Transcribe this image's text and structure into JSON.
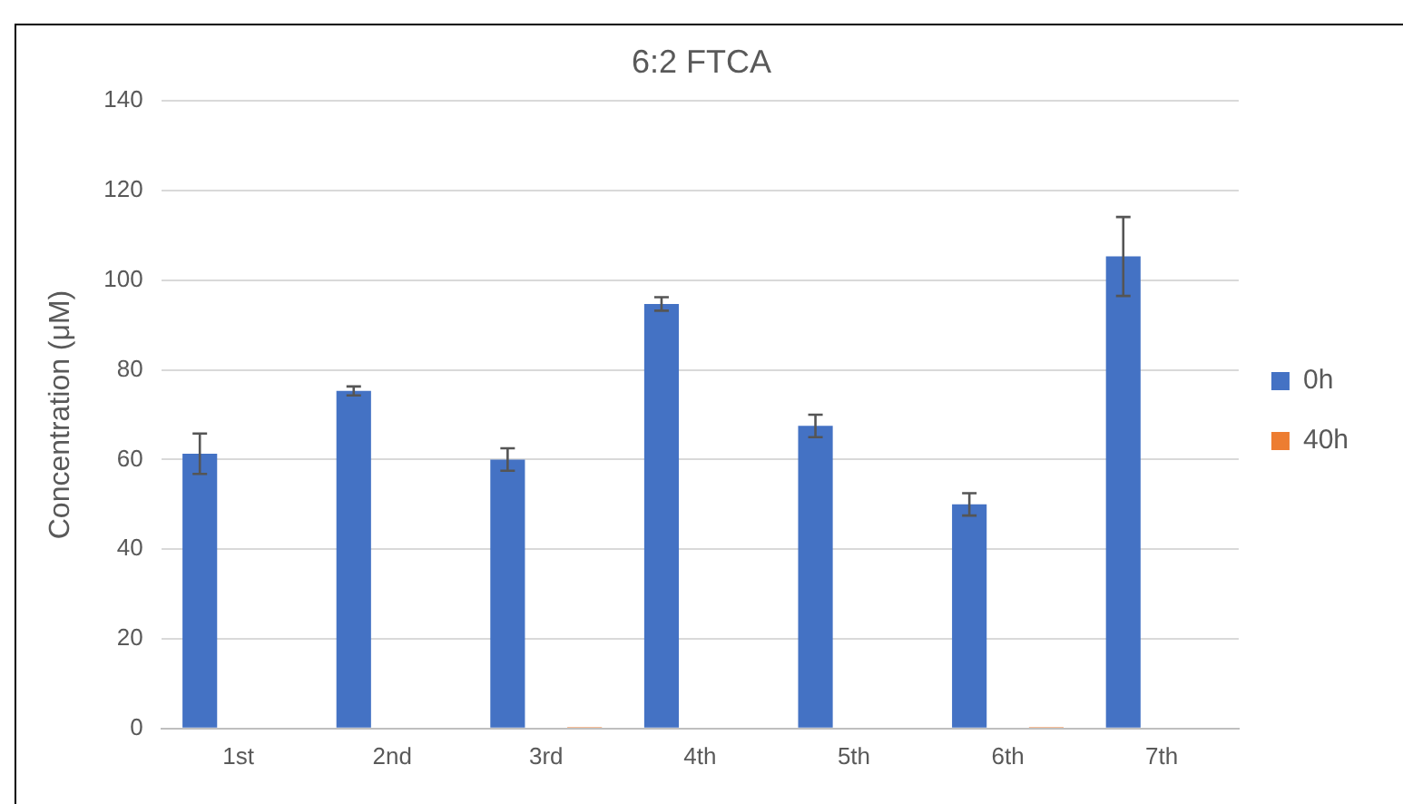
{
  "chart_data": {
    "type": "bar",
    "title": "6:2 FTCA",
    "ylabel": "Concentration (μM)",
    "categories": [
      "1st",
      "2nd",
      "3rd",
      "4th",
      "5th",
      "6th",
      "7th"
    ],
    "series": [
      {
        "name": "0h",
        "color": "#4472c4",
        "values": [
          61.3,
          75.3,
          60,
          94.7,
          67.5,
          50,
          105.3
        ],
        "errors": [
          4.5,
          1,
          2.5,
          1.5,
          2.5,
          2.5,
          8.8
        ]
      },
      {
        "name": "40h",
        "color": "#ed7d31",
        "values": [
          0,
          0,
          0.3,
          0,
          0,
          0.3,
          0
        ]
      }
    ],
    "ylim": [
      0,
      140
    ],
    "yticks": [
      0,
      20,
      40,
      60,
      80,
      100,
      120,
      140
    ],
    "grid": "y",
    "legend": "right"
  }
}
